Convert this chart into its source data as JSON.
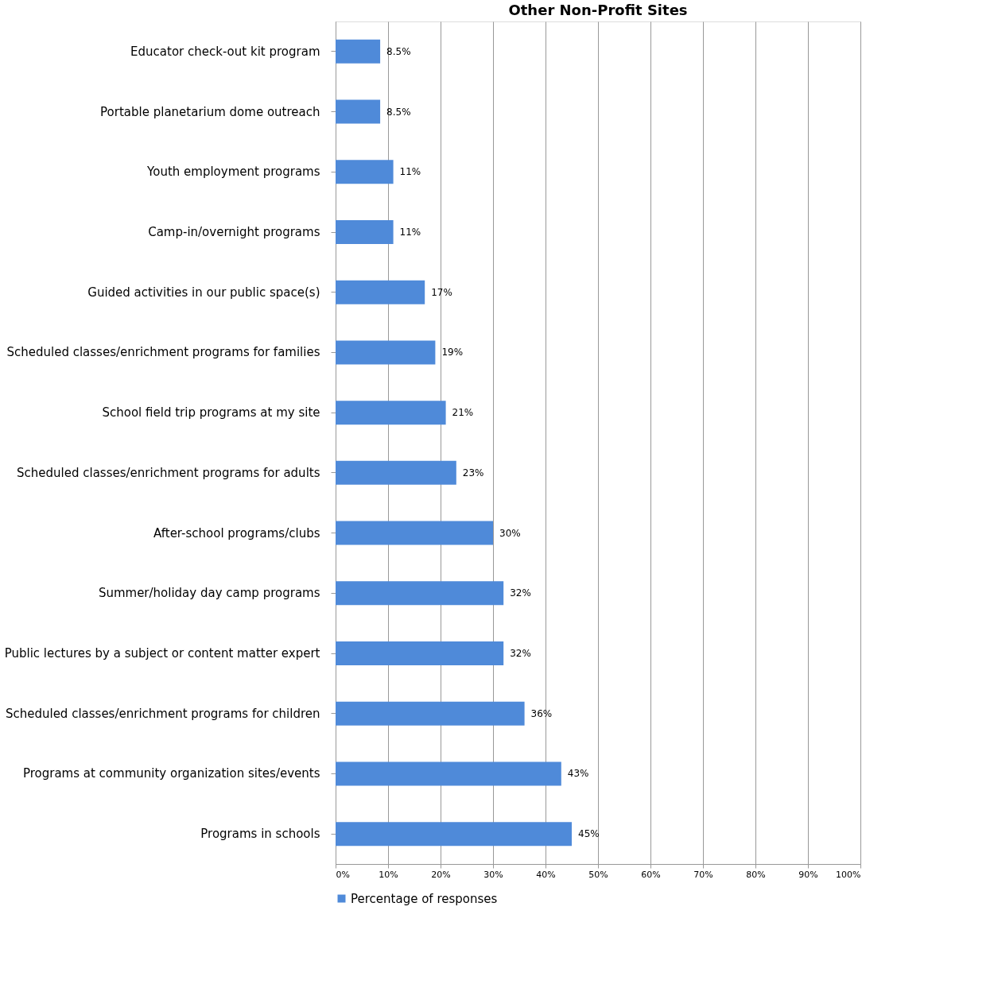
{
  "chart_data": {
    "type": "bar",
    "orientation": "horizontal",
    "title": "Other Non-Profit Sites",
    "categories": [
      "Educator check-out kit program",
      "Portable planetarium dome outreach",
      "Youth employment programs",
      "Camp-in/overnight programs",
      "Guided activities in our public space(s)",
      "Scheduled classes/enrichment programs for families",
      "School field trip programs at my site",
      "Scheduled classes/enrichment programs for adults",
      "After-school programs/clubs",
      "Summer/holiday day camp programs",
      "Public lectures by a subject or content matter expert",
      "Scheduled classes/enrichment programs for children",
      "Programs at community organization sites/events",
      "Programs in schools"
    ],
    "series": [
      {
        "name": "Percentage of responses",
        "color": "#4f8ad9",
        "values": [
          8.5,
          8.5,
          11,
          11,
          17,
          19,
          21,
          23,
          30,
          32,
          32,
          36,
          43,
          45
        ],
        "value_labels": [
          "8.5%",
          "8.5%",
          "11%",
          "11%",
          "17%",
          "19%",
          "21%",
          "23%",
          "30%",
          "32%",
          "32%",
          "36%",
          "43%",
          "45%"
        ]
      }
    ],
    "xlim": [
      0,
      100
    ],
    "xticks": [
      {
        "value": 0,
        "label": "0%"
      },
      {
        "value": 10,
        "label": "10%"
      },
      {
        "value": 20,
        "label": "20%"
      },
      {
        "value": 30,
        "label": "30%"
      },
      {
        "value": 40,
        "label": "40%"
      },
      {
        "value": 50,
        "label": "50%"
      },
      {
        "value": 60,
        "label": "60%"
      },
      {
        "value": 70,
        "label": "70%"
      },
      {
        "value": 80,
        "label": "80%"
      },
      {
        "value": 90,
        "label": "90%"
      },
      {
        "value": 100,
        "label": "100%"
      }
    ],
    "grid": "x",
    "legend": "bottom"
  }
}
